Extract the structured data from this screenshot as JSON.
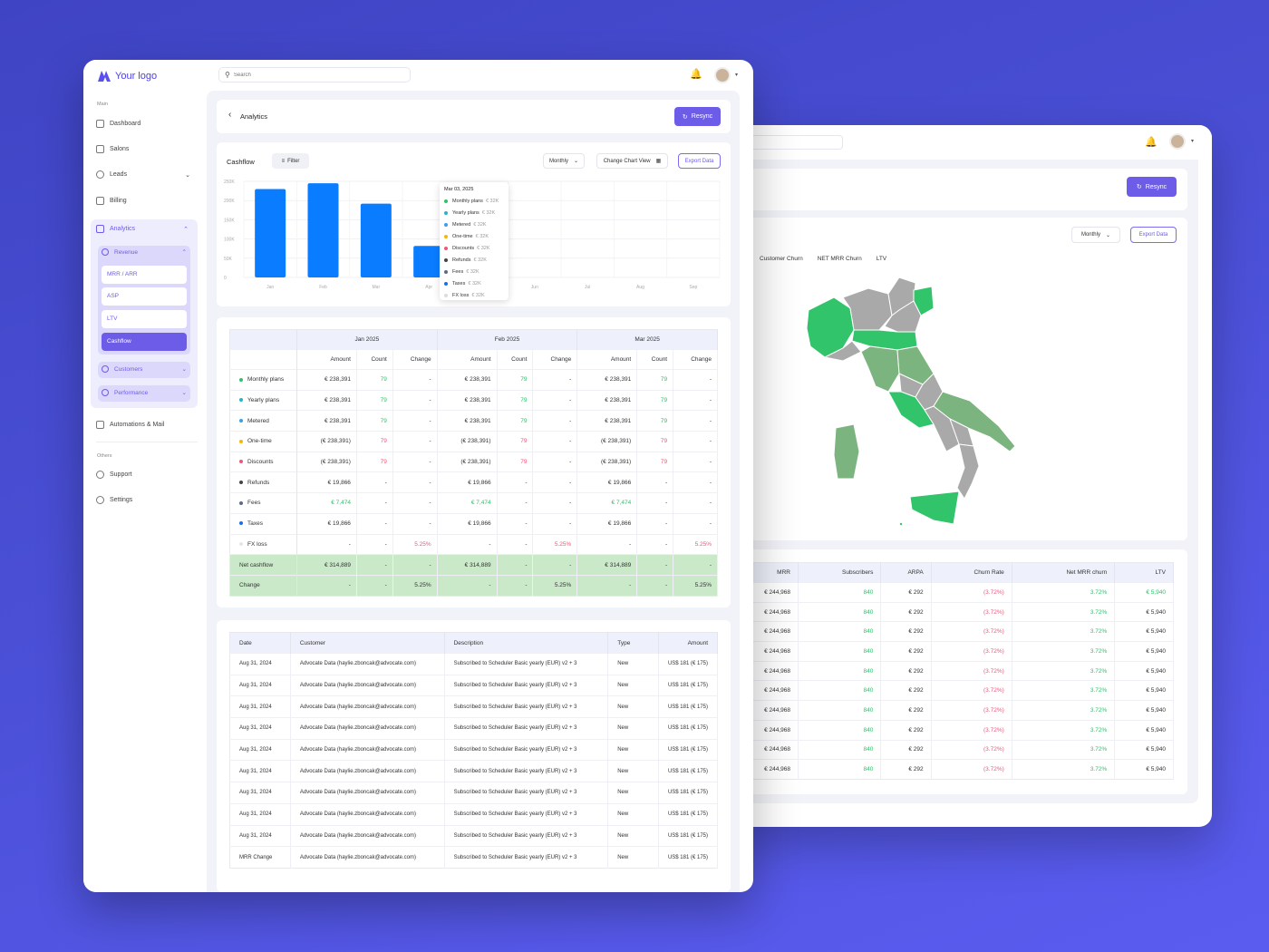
{
  "logo": {
    "text": "Your logo"
  },
  "search": {
    "placeholder": "Search"
  },
  "sidebar": {
    "main_label": "Main",
    "dashboard": "Dashboard",
    "salons": "Salons",
    "leads": "Leads",
    "billing": "Billing",
    "analytics": "Analytics",
    "revenue": "Revenue",
    "sub": [
      "MRR / ARR",
      "ASP",
      "LTV",
      "Cashflow"
    ],
    "customers": "Customers",
    "performance": "Performance",
    "automations": "Automations & Mail",
    "others_label": "Others",
    "support": "Support",
    "settings": "Settings"
  },
  "header": {
    "title": "Analytics",
    "resync": "Resync"
  },
  "cashflow": {
    "title": "Cashflow",
    "filter": "Filter",
    "period": "Monthly",
    "change_view": "Change Chart View",
    "export": "Export Data",
    "tooltip": {
      "date": "Mar 03, 2025",
      "rows": [
        {
          "label": "Monthly plans",
          "value": "€ 32K",
          "color": "#2fc26a"
        },
        {
          "label": "Yearly plans",
          "value": "€ 32K",
          "color": "#1fb7c9"
        },
        {
          "label": "Metered",
          "value": "€ 32K",
          "color": "#3aa0e8"
        },
        {
          "label": "One-time",
          "value": "€ 32K",
          "color": "#f5b800"
        },
        {
          "label": "Discounts",
          "value": "€ 32K",
          "color": "#f0567b"
        },
        {
          "label": "Refunds",
          "value": "€ 32K",
          "color": "#444"
        },
        {
          "label": "Fees",
          "value": "€ 32K",
          "color": "#5b6a8a"
        },
        {
          "label": "Taxes",
          "value": "€ 32K",
          "color": "#1a6fe6"
        },
        {
          "label": "FX loss",
          "value": "€ 32K",
          "color": "#ddd"
        }
      ]
    }
  },
  "chart_data": {
    "type": "bar",
    "categories": [
      "Jan",
      "Feb",
      "Mar",
      "Apr",
      "May",
      "Jun",
      "Jul",
      "Aug",
      "Sep"
    ],
    "values": [
      230000,
      245000,
      192000,
      82000,
      null,
      null,
      null,
      null,
      null
    ],
    "ylim": [
      0,
      250000
    ],
    "yticks": [
      "0",
      "50K",
      "100K",
      "150K",
      "200K",
      "250K"
    ],
    "grid": true,
    "color": "#0a7cff"
  },
  "cf_table": {
    "months": [
      "Jan 2025",
      "Feb 2025",
      "Mar 2025"
    ],
    "subheads": [
      "Amount",
      "Count",
      "Change"
    ],
    "rows": [
      {
        "label": "Monthly plans",
        "color": "#2fc26a",
        "cells": [
          [
            "€ 238,391",
            "79",
            "-"
          ],
          [
            "€ 238,391",
            "79",
            "-"
          ],
          [
            "€ 238,391",
            "79",
            "-"
          ]
        ],
        "cc": "green"
      },
      {
        "label": "Yearly plans",
        "color": "#1fb7c9",
        "cells": [
          [
            "€ 238,391",
            "79",
            "-"
          ],
          [
            "€ 238,391",
            "79",
            "-"
          ],
          [
            "€ 238,391",
            "79",
            "-"
          ]
        ],
        "cc": "green"
      },
      {
        "label": "Metered",
        "color": "#3aa0e8",
        "cells": [
          [
            "€ 238,391",
            "79",
            "-"
          ],
          [
            "€ 238,391",
            "79",
            "-"
          ],
          [
            "€ 238,391",
            "79",
            "-"
          ]
        ],
        "cc": "green"
      },
      {
        "label": "One-time",
        "color": "#f5b800",
        "cells": [
          [
            "(€ 238,391)",
            "79",
            "-"
          ],
          [
            "(€ 238,391)",
            "79",
            "-"
          ],
          [
            "(€ 238,391)",
            "79",
            "-"
          ]
        ],
        "cc": "red"
      },
      {
        "label": "Discounts",
        "color": "#f0567b",
        "cells": [
          [
            "(€ 238,391)",
            "79",
            "-"
          ],
          [
            "(€ 238,391)",
            "79",
            "-"
          ],
          [
            "(€ 238,391)",
            "79",
            "-"
          ]
        ],
        "cc": "red"
      },
      {
        "label": "Refunds",
        "color": "#444",
        "cells": [
          [
            "€ 19,866",
            "-",
            "-"
          ],
          [
            "€ 19,866",
            "-",
            "-"
          ],
          [
            "€ 19,866",
            "-",
            "-"
          ]
        ],
        "cc": ""
      },
      {
        "label": "Fees",
        "color": "#5b6a8a",
        "cells": [
          [
            "€ 7,474",
            "-",
            "-"
          ],
          [
            "€ 7,474",
            "-",
            "-"
          ],
          [
            "€ 7,474",
            "-",
            "-"
          ]
        ],
        "ac": "green"
      },
      {
        "label": "Taxes",
        "color": "#1a6fe6",
        "cells": [
          [
            "€ 19,866",
            "-",
            "-"
          ],
          [
            "€ 19,866",
            "-",
            "-"
          ],
          [
            "€ 19,866",
            "-",
            "-"
          ]
        ],
        "cc": ""
      },
      {
        "label": "FX loss",
        "color": "#e6e6e6",
        "cells": [
          [
            "-",
            "-",
            "5.25%"
          ],
          [
            "-",
            "-",
            "5.25%"
          ],
          [
            "-",
            "-",
            "5.25%"
          ]
        ],
        "chc": "red"
      }
    ],
    "net": {
      "label": "Net cashflow",
      "cells": [
        [
          "€ 314,889",
          "-",
          "-"
        ],
        [
          "€ 314,889",
          "-",
          "-"
        ],
        [
          "€ 314,889",
          "-",
          "-"
        ]
      ]
    },
    "change": {
      "label": "Change",
      "cells": [
        [
          "-",
          "-",
          "5.25%"
        ],
        [
          "-",
          "-",
          "5.25%"
        ],
        [
          "-",
          "-",
          "5.25%"
        ]
      ]
    }
  },
  "tx_table": {
    "headers": [
      "Date",
      "Customer",
      "Description",
      "Type",
      "Amount"
    ],
    "rows": [
      [
        "Aug 31, 2024",
        "Advocate Data (haylie.zboncak@advocate.com)",
        "Subscribed to Scheduler Basic yearly (EUR) v2 + 3",
        "New",
        "US$ 181 (€ 175)"
      ],
      [
        "Aug 31, 2024",
        "Advocate Data (haylie.zboncak@advocate.com)",
        "Subscribed to Scheduler Basic yearly (EUR) v2 + 3",
        "New",
        "US$ 181 (€ 175)"
      ],
      [
        "Aug 31, 2024",
        "Advocate Data (haylie.zboncak@advocate.com)",
        "Subscribed to Scheduler Basic yearly (EUR) v2 + 3",
        "New",
        "US$ 181 (€ 175)"
      ],
      [
        "Aug 31, 2024",
        "Advocate Data (haylie.zboncak@advocate.com)",
        "Subscribed to Scheduler Basic yearly (EUR) v2 + 3",
        "New",
        "US$ 181 (€ 175)"
      ],
      [
        "Aug 31, 2024",
        "Advocate Data (haylie.zboncak@advocate.com)",
        "Subscribed to Scheduler Basic yearly (EUR) v2 + 3",
        "New",
        "US$ 181 (€ 175)"
      ],
      [
        "Aug 31, 2024",
        "Advocate Data (haylie.zboncak@advocate.com)",
        "Subscribed to Scheduler Basic yearly (EUR) v2 + 3",
        "New",
        "US$ 181 (€ 175)"
      ],
      [
        "Aug 31, 2024",
        "Advocate Data (haylie.zboncak@advocate.com)",
        "Subscribed to Scheduler Basic yearly (EUR) v2 + 3",
        "New",
        "US$ 181 (€ 175)"
      ],
      [
        "Aug 31, 2024",
        "Advocate Data (haylie.zboncak@advocate.com)",
        "Subscribed to Scheduler Basic yearly (EUR) v2 + 3",
        "New",
        "US$ 181 (€ 175)"
      ],
      [
        "Aug 31, 2024",
        "Advocate Data (haylie.zboncak@advocate.com)",
        "Subscribed to Scheduler Basic yearly (EUR) v2 + 3",
        "New",
        "US$ 181 (€ 175)"
      ],
      [
        "MRR Change",
        "Advocate Data (haylie.zboncak@advocate.com)",
        "Subscribed to Scheduler Basic yearly (EUR) v2 + 3",
        "New",
        "US$ 181 (€ 175)"
      ]
    ]
  },
  "back": {
    "resync": "Resync",
    "period": "Monthly",
    "export": "Export Data",
    "tabs": [
      "Customer Churn",
      "NET MRR Churn",
      "LTV"
    ],
    "headers": [
      "MRR",
      "Subscribers",
      "ARPA",
      "Churn Rate",
      "Net MRR churn",
      "LTV"
    ],
    "rows": [
      [
        "€ 244,968",
        "840",
        "€ 292",
        "(3.72%)",
        "3.72%",
        "€ 5,940"
      ],
      [
        "€ 244,968",
        "840",
        "€ 292",
        "(3.72%)",
        "3.72%",
        "€ 5,940"
      ],
      [
        "€ 244,968",
        "840",
        "€ 292",
        "(3.72%)",
        "3.72%",
        "€ 5,940"
      ],
      [
        "€ 244,968",
        "840",
        "€ 292",
        "(3.72%)",
        "3.72%",
        "€ 5,940"
      ],
      [
        "€ 244,968",
        "840",
        "€ 292",
        "(3.72%)",
        "3.72%",
        "€ 5,940"
      ],
      [
        "€ 244,968",
        "840",
        "€ 292",
        "(3.72%)",
        "3.72%",
        "€ 5,940"
      ],
      [
        "€ 244,968",
        "840",
        "€ 292",
        "(3.72%)",
        "3.72%",
        "€ 5,940"
      ],
      [
        "€ 244,968",
        "840",
        "€ 292",
        "(3.72%)",
        "3.72%",
        "€ 5,940"
      ],
      [
        "€ 244,968",
        "840",
        "€ 292",
        "(3.72%)",
        "3.72%",
        "€ 5,940"
      ],
      [
        "€ 244,968",
        "840",
        "€ 292",
        "(3.72%)",
        "3.72%",
        "€ 5,940"
      ]
    ]
  }
}
